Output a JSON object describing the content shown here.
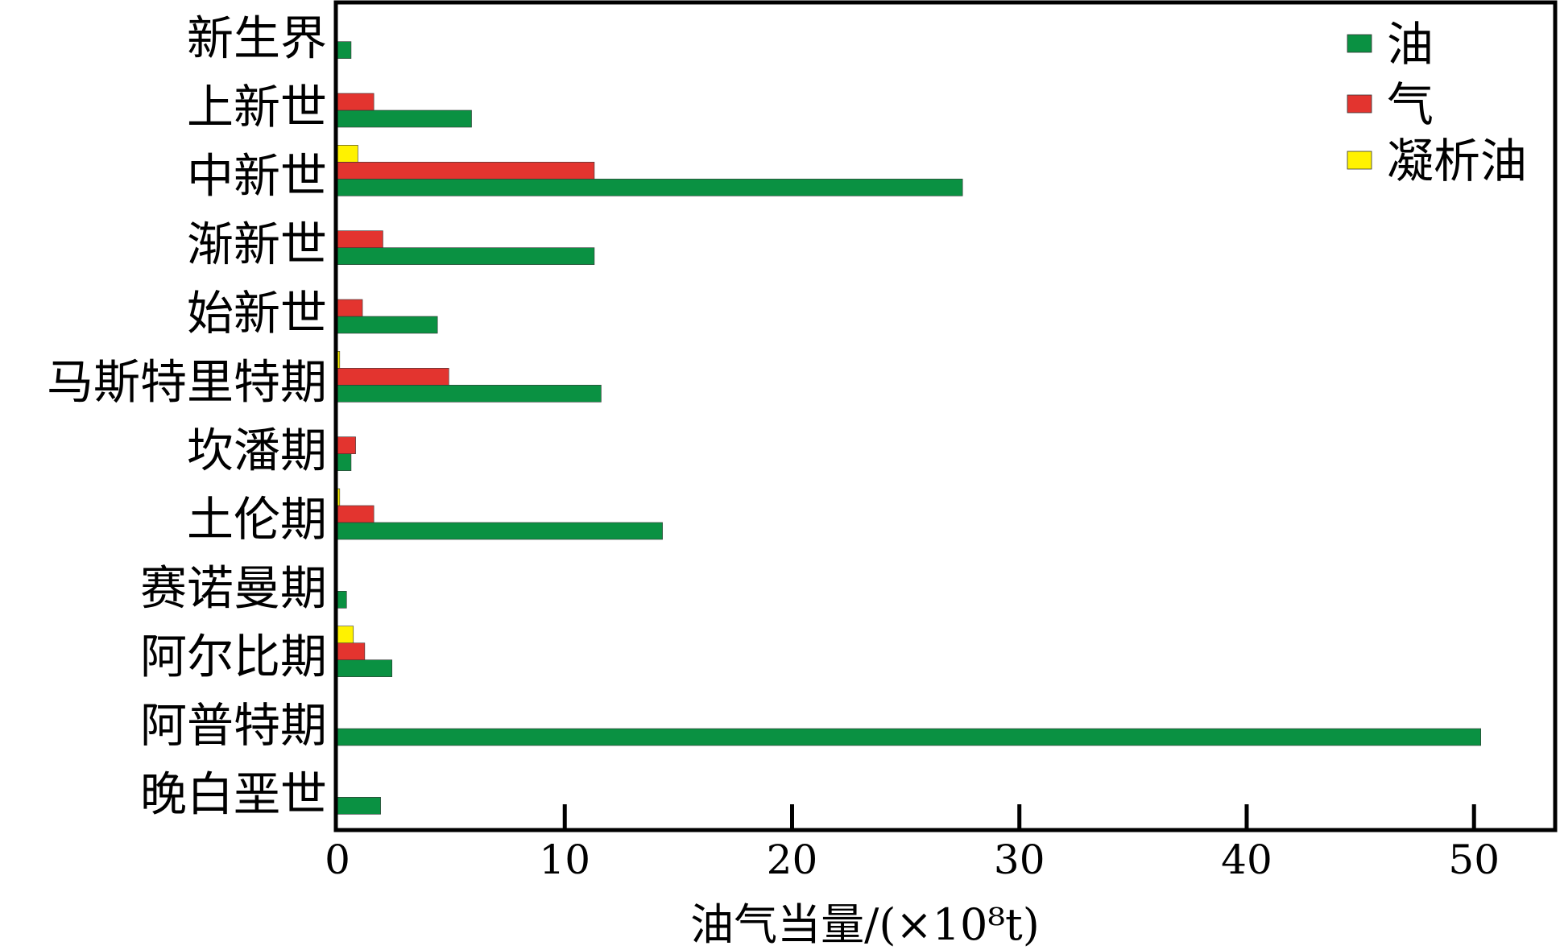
{
  "chart_data": {
    "type": "bar",
    "orientation": "horizontal",
    "categories": [
      "新生界",
      "上新世",
      "中新世",
      "渐新世",
      "始新世",
      "马斯特里特期",
      "坎潘期",
      "土伦期",
      "赛诺曼期",
      "阿尔比期",
      "阿普特期",
      "晚白垩世"
    ],
    "series": [
      {
        "name": "油",
        "color": "#0a9142",
        "values": [
          0.6,
          5.9,
          27.5,
          11.3,
          4.4,
          11.6,
          0.6,
          14.3,
          0.4,
          2.4,
          50.3,
          1.9
        ]
      },
      {
        "name": "气",
        "color": "#e3342f",
        "values": [
          0,
          1.6,
          11.3,
          2.0,
          1.1,
          4.9,
          0.8,
          1.6,
          0,
          1.2,
          0,
          0
        ]
      },
      {
        "name": "凝析油",
        "color": "#fff200",
        "values": [
          0,
          0,
          0.9,
          0,
          0,
          0.1,
          0,
          0.1,
          0,
          0.7,
          0,
          0
        ]
      }
    ],
    "xlabel": "油气当量/(×10⁸t)",
    "xlim": [
      0,
      53.5
    ],
    "xticks": [
      "0",
      "10",
      "20",
      "30",
      "40",
      "50"
    ],
    "xtick_values": [
      0,
      10,
      20,
      30,
      40,
      50
    ],
    "legend_position": "top-right",
    "grid": false
  }
}
